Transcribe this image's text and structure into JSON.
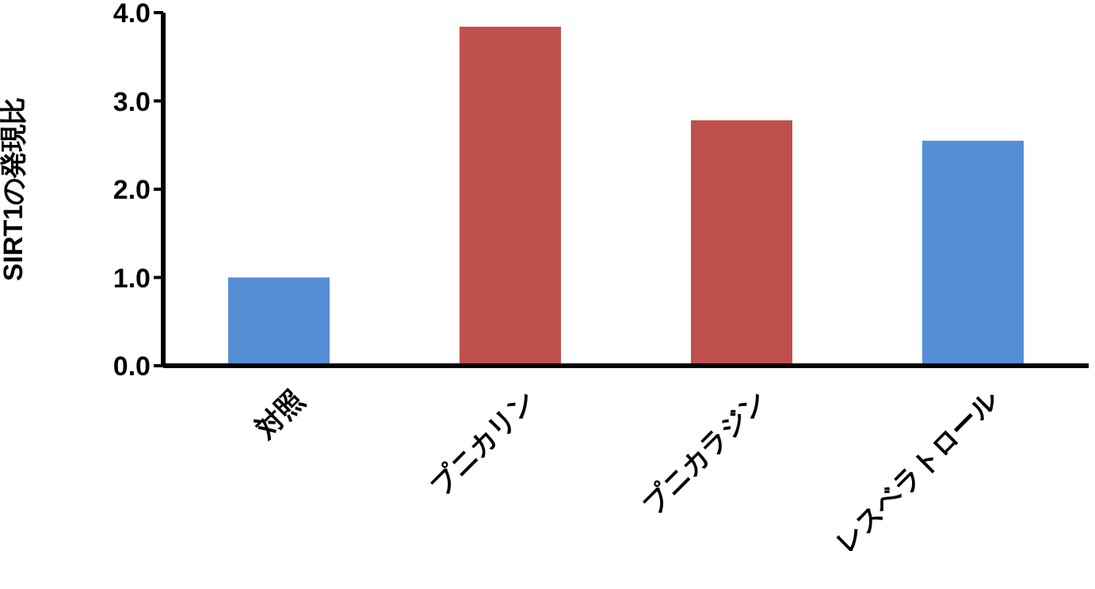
{
  "chart_data": {
    "type": "bar",
    "ylabel": "SIRT1の発現比",
    "categories": [
      "対照",
      "プニカリン",
      "プニカラジン",
      "レスベラトロール"
    ],
    "values": [
      1.0,
      3.84,
      2.78,
      2.55
    ],
    "colors": [
      "#558ed5",
      "#c0504d",
      "#c0504d",
      "#558ed5"
    ],
    "ylim": [
      0,
      4
    ],
    "yticks": [
      {
        "value": 0,
        "label": "0.0"
      },
      {
        "value": 1,
        "label": "1.0"
      },
      {
        "value": 2,
        "label": "2.0"
      },
      {
        "value": 3,
        "label": "3.0"
      },
      {
        "value": 4,
        "label": "4.0"
      }
    ],
    "grid": false
  }
}
